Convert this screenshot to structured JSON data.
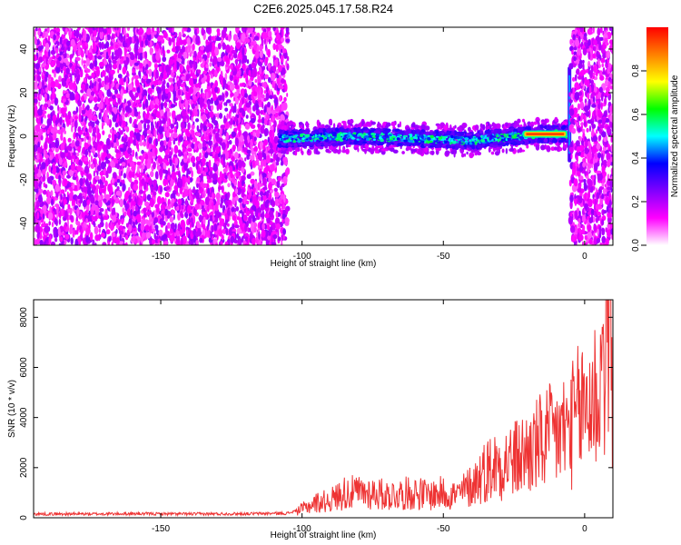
{
  "figure_title": "C2E6.2025.045.17.58.R24",
  "chart_data": [
    {
      "type": "heatmap",
      "title": "C2E6.2025.045.17.58.R24",
      "xlabel": "Height of straight line (km)",
      "ylabel": "Frequency (Hz)",
      "xlim": [
        -195,
        10
      ],
      "ylim": [
        -50,
        50
      ],
      "x_ticks": [
        -150,
        -100,
        -50,
        0
      ],
      "y_ticks": [
        -40,
        -20,
        0,
        20,
        40
      ],
      "colorbar": {
        "label": "Normalized spectral amplitude",
        "range": [
          0,
          1
        ],
        "ticks": [
          0.0,
          0.2,
          0.4,
          0.6,
          0.8
        ],
        "tick_labels": [
          "0.0",
          "0.2",
          "0.4",
          "0.6",
          "0.8"
        ],
        "colormap": [
          "#ffffff",
          "#ff00ff",
          "#8000ff",
          "#0000ff",
          "#00ffff",
          "#00ff00",
          "#ffff00",
          "#ff8000",
          "#ff0000"
        ]
      },
      "regions": [
        {
          "description": "noise",
          "x_range": [
            -195,
            -105
          ],
          "amplitude": 0.1
        },
        {
          "description": "signal track",
          "x_range": [
            -108,
            -6
          ],
          "freq_center": 0,
          "amplitude": 0.45
        },
        {
          "description": "strong signal",
          "x_range": [
            -22,
            -6
          ],
          "freq_center": 0,
          "amplitude": 0.95
        },
        {
          "description": "noise",
          "x_range": [
            -5,
            10
          ],
          "amplitude": 0.1
        }
      ],
      "track_center_hz": [
        {
          "x": -105,
          "y": -1
        },
        {
          "x": -80,
          "y": 0
        },
        {
          "x": -60,
          "y": -1
        },
        {
          "x": -40,
          "y": -2
        },
        {
          "x": -25,
          "y": 0
        },
        {
          "x": -15,
          "y": 1
        },
        {
          "x": -6,
          "y": 1
        }
      ]
    },
    {
      "type": "line",
      "xlabel": "Height of straight line (km)",
      "ylabel": "SNR (10 * v/v)",
      "xlim": [
        -195,
        10
      ],
      "ylim": [
        0,
        8700
      ],
      "x_ticks": [
        -150,
        -100,
        -50,
        0
      ],
      "y_ticks": [
        0,
        2000,
        4000,
        6000,
        8000
      ],
      "color": "#ee3333",
      "series": [
        {
          "x": [
            -195,
            -180,
            -160,
            -140,
            -120,
            -105,
            -100,
            -95,
            -90,
            -85,
            -80,
            -75,
            -70,
            -65,
            -60,
            -55,
            -50,
            -45,
            -40,
            -35,
            -30,
            -25,
            -20,
            -15,
            -10,
            -5,
            0,
            5,
            9,
            10
          ],
          "y": [
            150,
            150,
            160,
            150,
            160,
            180,
            350,
            600,
            700,
            1000,
            1000,
            1000,
            900,
            950,
            1000,
            900,
            1000,
            900,
            1300,
            1900,
            2200,
            2300,
            2600,
            3000,
            3300,
            3600,
            4500,
            5000,
            8700,
            5500
          ]
        }
      ]
    }
  ]
}
